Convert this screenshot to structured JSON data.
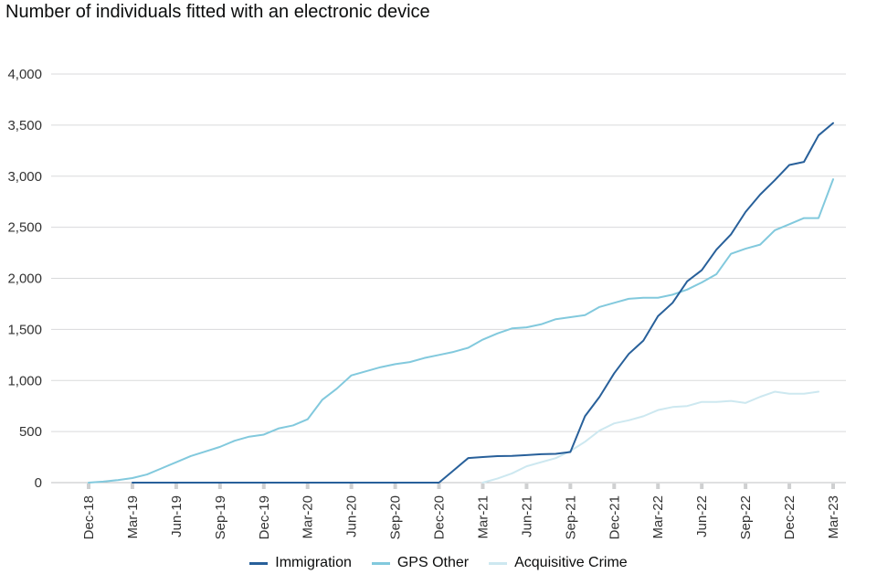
{
  "chart_data": {
    "type": "line",
    "title": "Number of individuals fitted with an electronic device",
    "xlabel": "",
    "ylabel": "",
    "ylim": [
      0,
      4000
    ],
    "yticks": [
      0,
      500,
      1000,
      1500,
      2000,
      2500,
      3000,
      3500,
      4000
    ],
    "ytick_labels": [
      "0",
      "500",
      "1,000",
      "1,500",
      "2,000",
      "2,500",
      "3,000",
      "3,500",
      "4,000"
    ],
    "x_tick_labels": [
      "Dec-18",
      "Mar-19",
      "Jun-19",
      "Sep-19",
      "Dec-19",
      "Mar-20",
      "Jun-20",
      "Sep-20",
      "Dec-20",
      "Mar-21",
      "Jun-21",
      "Sep-21",
      "Dec-21",
      "Mar-22",
      "Jun-22",
      "Sep-22",
      "Dec-22",
      "Mar-23"
    ],
    "x": [
      "Dec-18",
      "Jan-19",
      "Feb-19",
      "Mar-19",
      "Apr-19",
      "May-19",
      "Jun-19",
      "Jul-19",
      "Aug-19",
      "Sep-19",
      "Oct-19",
      "Nov-19",
      "Dec-19",
      "Jan-20",
      "Feb-20",
      "Mar-20",
      "Apr-20",
      "May-20",
      "Jun-20",
      "Jul-20",
      "Aug-20",
      "Sep-20",
      "Oct-20",
      "Nov-20",
      "Dec-20",
      "Jan-21",
      "Feb-21",
      "Mar-21",
      "Apr-21",
      "May-21",
      "Jun-21",
      "Jul-21",
      "Aug-21",
      "Sep-21",
      "Oct-21",
      "Nov-21",
      "Dec-21",
      "Jan-22",
      "Feb-22",
      "Mar-22",
      "Apr-22",
      "May-22",
      "Jun-22",
      "Jul-22",
      "Aug-22",
      "Sep-22",
      "Oct-22",
      "Nov-22",
      "Dec-22",
      "Jan-23",
      "Feb-23",
      "Mar-23"
    ],
    "grid": true,
    "legend": "bottom",
    "series": [
      {
        "name": "Immigration",
        "color": "#28609a",
        "values": [
          null,
          null,
          null,
          0,
          0,
          0,
          0,
          0,
          0,
          0,
          0,
          0,
          0,
          0,
          0,
          0,
          0,
          0,
          0,
          0,
          0,
          0,
          0,
          0,
          0,
          120,
          240,
          250,
          260,
          262,
          270,
          278,
          282,
          300,
          650,
          840,
          1070,
          1260,
          1390,
          1630,
          1760,
          1970,
          2080,
          2280,
          2430,
          2650,
          2820,
          2960,
          3110,
          3140,
          3400,
          3520
        ]
      },
      {
        "name": "GPS Other",
        "color": "#82c9dd",
        "values": [
          0,
          10,
          25,
          45,
          80,
          140,
          200,
          260,
          305,
          350,
          410,
          450,
          470,
          530,
          560,
          620,
          810,
          920,
          1050,
          1090,
          1130,
          1160,
          1180,
          1220,
          1250,
          1280,
          1320,
          1400,
          1460,
          1510,
          1520,
          1550,
          1600,
          1620,
          1640,
          1720,
          1760,
          1800,
          1810,
          1810,
          1840,
          1890,
          1960,
          2040,
          2240,
          2290,
          2330,
          2470,
          2530,
          2590,
          2590,
          2970
        ]
      },
      {
        "name": "Acquisitive Crime",
        "color": "#cde8f0",
        "values": [
          null,
          null,
          null,
          null,
          null,
          null,
          null,
          null,
          null,
          null,
          null,
          null,
          null,
          null,
          null,
          null,
          null,
          null,
          null,
          null,
          null,
          null,
          null,
          null,
          null,
          null,
          null,
          0,
          40,
          90,
          160,
          200,
          240,
          310,
          400,
          510,
          580,
          610,
          650,
          710,
          740,
          750,
          790,
          790,
          800,
          780,
          840,
          890,
          870,
          870,
          890,
          null
        ]
      }
    ]
  }
}
